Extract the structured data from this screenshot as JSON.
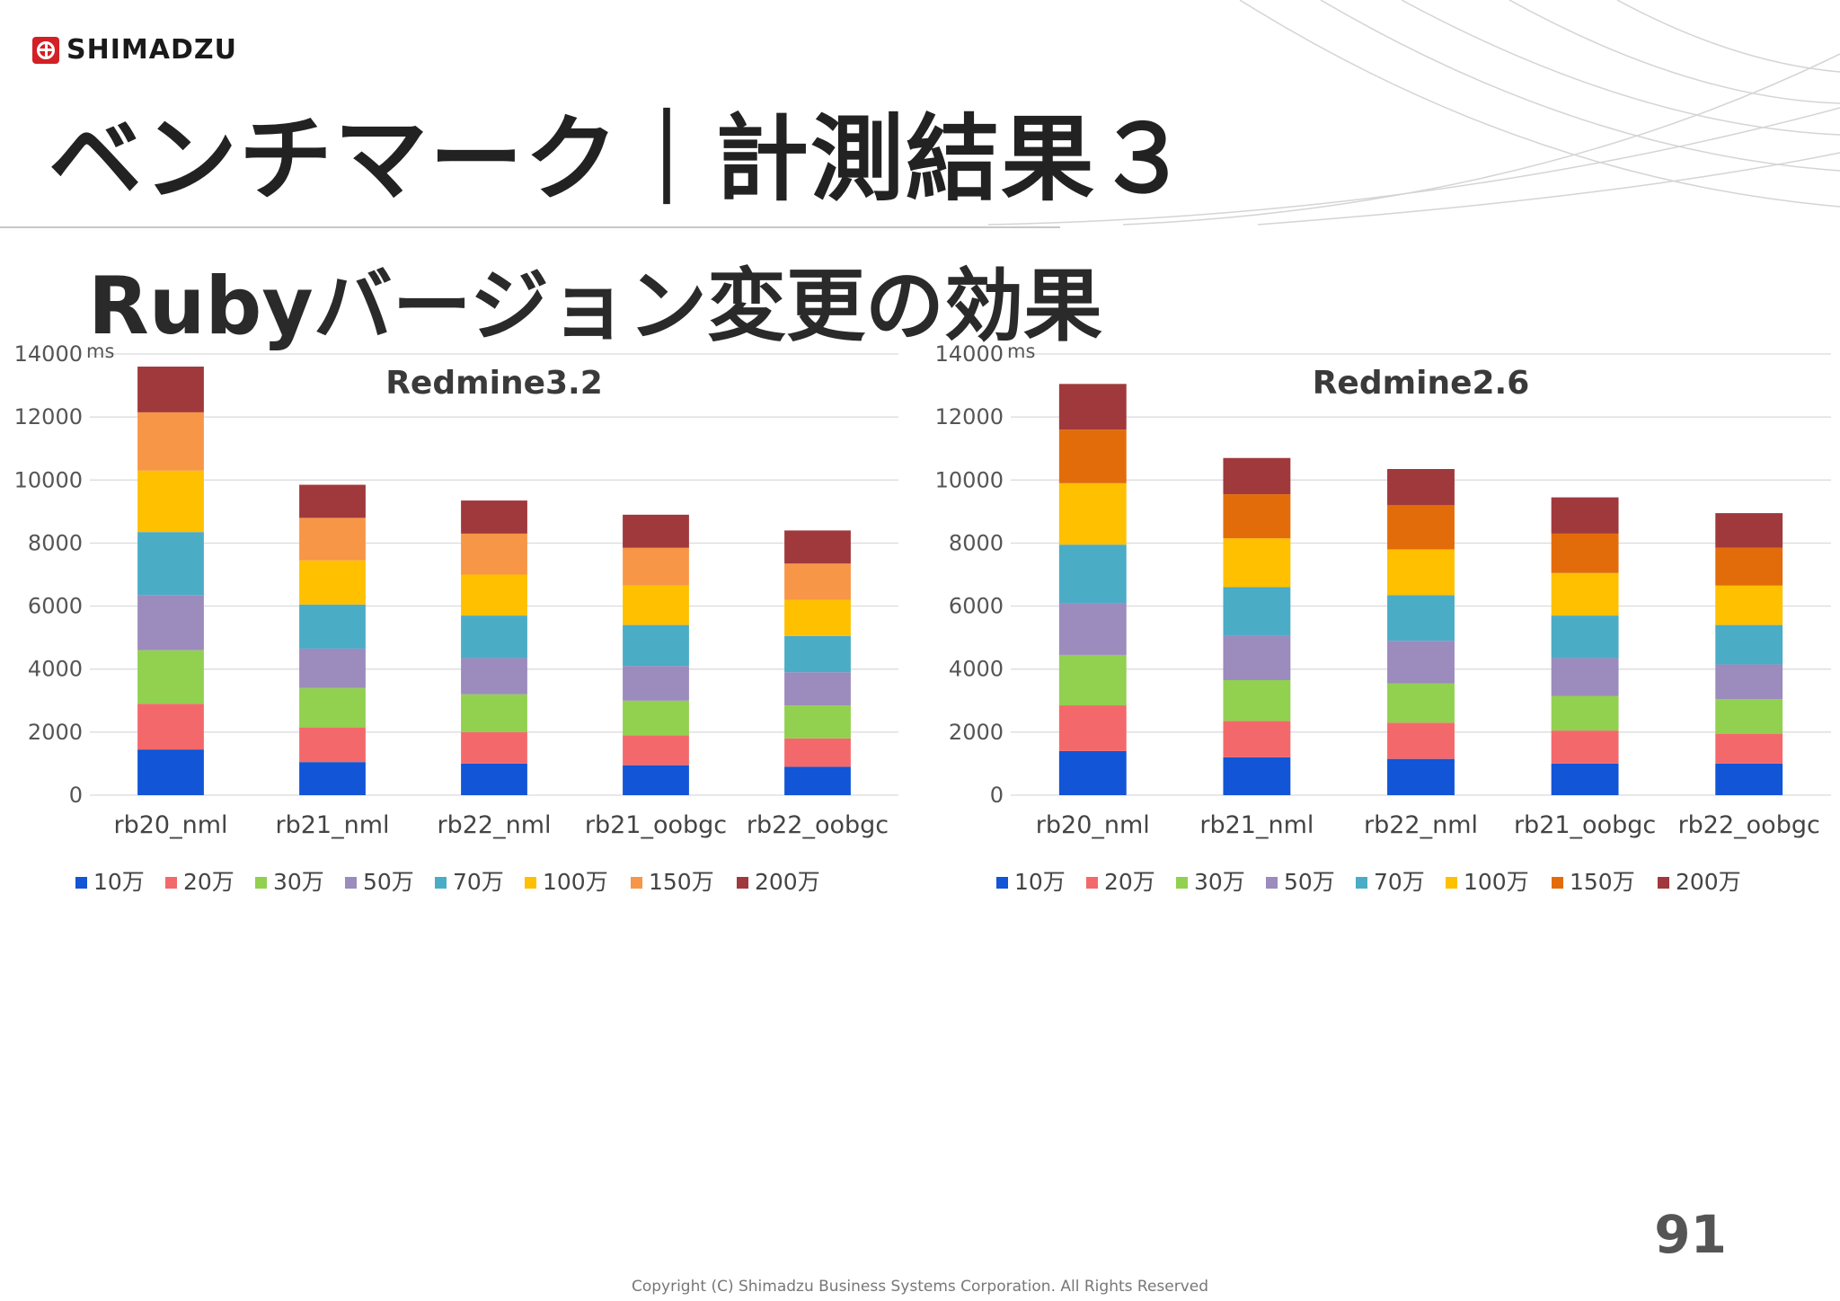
{
  "brand": {
    "name": "SHIMADZU",
    "color": "#d31f26"
  },
  "slide": {
    "title": "ベンチマーク｜計測結果３",
    "subtitle": "Rubyバージョン変更の効果",
    "page_number": "91",
    "copyright": "Copyright (C) Shimadzu Business Systems Corporation. All Rights Reserved"
  },
  "chart_data": [
    {
      "type": "bar",
      "stacked": true,
      "title": "Redmine3.2",
      "ylabel": "ms",
      "ylim": [
        0,
        14000
      ],
      "yticks": [
        0,
        2000,
        4000,
        6000,
        8000,
        10000,
        12000,
        14000
      ],
      "grid": true,
      "legend": "bottom",
      "categories": [
        "rb20_nml",
        "rb21_nml",
        "rb22_nml",
        "rb21_oobgc",
        "rb22_oobgc"
      ],
      "series": [
        {
          "name": "10万",
          "color": "#1255d6",
          "values": [
            1450,
            1050,
            1000,
            950,
            900
          ]
        },
        {
          "name": "20万",
          "color": "#f3696b",
          "values": [
            1450,
            1100,
            1000,
            950,
            900
          ]
        },
        {
          "name": "30万",
          "color": "#92d050",
          "values": [
            1700,
            1250,
            1200,
            1100,
            1050
          ]
        },
        {
          "name": "50万",
          "color": "#9c8bbd",
          "values": [
            1750,
            1250,
            1150,
            1100,
            1050
          ]
        },
        {
          "name": "70万",
          "color": "#4bacc6",
          "values": [
            2000,
            1400,
            1350,
            1300,
            1150
          ]
        },
        {
          "name": "100万",
          "color": "#ffc000",
          "values": [
            1950,
            1400,
            1300,
            1250,
            1150
          ]
        },
        {
          "name": "150万",
          "color": "#f79646",
          "values": [
            1850,
            1350,
            1300,
            1200,
            1150
          ]
        },
        {
          "name": "200万",
          "color": "#a0393c",
          "values": [
            1450,
            1050,
            1050,
            1050,
            1050
          ]
        }
      ]
    },
    {
      "type": "bar",
      "stacked": true,
      "title": "Redmine2.6",
      "ylabel": "ms",
      "ylim": [
        0,
        14000
      ],
      "yticks": [
        0,
        2000,
        4000,
        6000,
        8000,
        10000,
        12000,
        14000
      ],
      "grid": true,
      "legend": "bottom",
      "categories": [
        "rb20_nml",
        "rb21_nml",
        "rb22_nml",
        "rb21_oobgc",
        "rb22_oobgc"
      ],
      "series": [
        {
          "name": "10万",
          "color": "#1255d6",
          "values": [
            1400,
            1200,
            1150,
            1000,
            1000
          ]
        },
        {
          "name": "20万",
          "color": "#f3696b",
          "values": [
            1450,
            1150,
            1150,
            1050,
            950
          ]
        },
        {
          "name": "30万",
          "color": "#92d050",
          "values": [
            1600,
            1300,
            1250,
            1100,
            1100
          ]
        },
        {
          "name": "50万",
          "color": "#9c8bbd",
          "values": [
            1650,
            1400,
            1350,
            1200,
            1100
          ]
        },
        {
          "name": "70万",
          "color": "#4bacc6",
          "values": [
            1850,
            1550,
            1450,
            1350,
            1250
          ]
        },
        {
          "name": "100万",
          "color": "#ffc000",
          "values": [
            1950,
            1550,
            1450,
            1350,
            1250
          ]
        },
        {
          "name": "150万",
          "color": "#e36c0a",
          "values": [
            1700,
            1400,
            1400,
            1250,
            1200
          ]
        },
        {
          "name": "200万",
          "color": "#a0393c",
          "values": [
            1450,
            1150,
            1150,
            1150,
            1100
          ]
        }
      ]
    }
  ]
}
